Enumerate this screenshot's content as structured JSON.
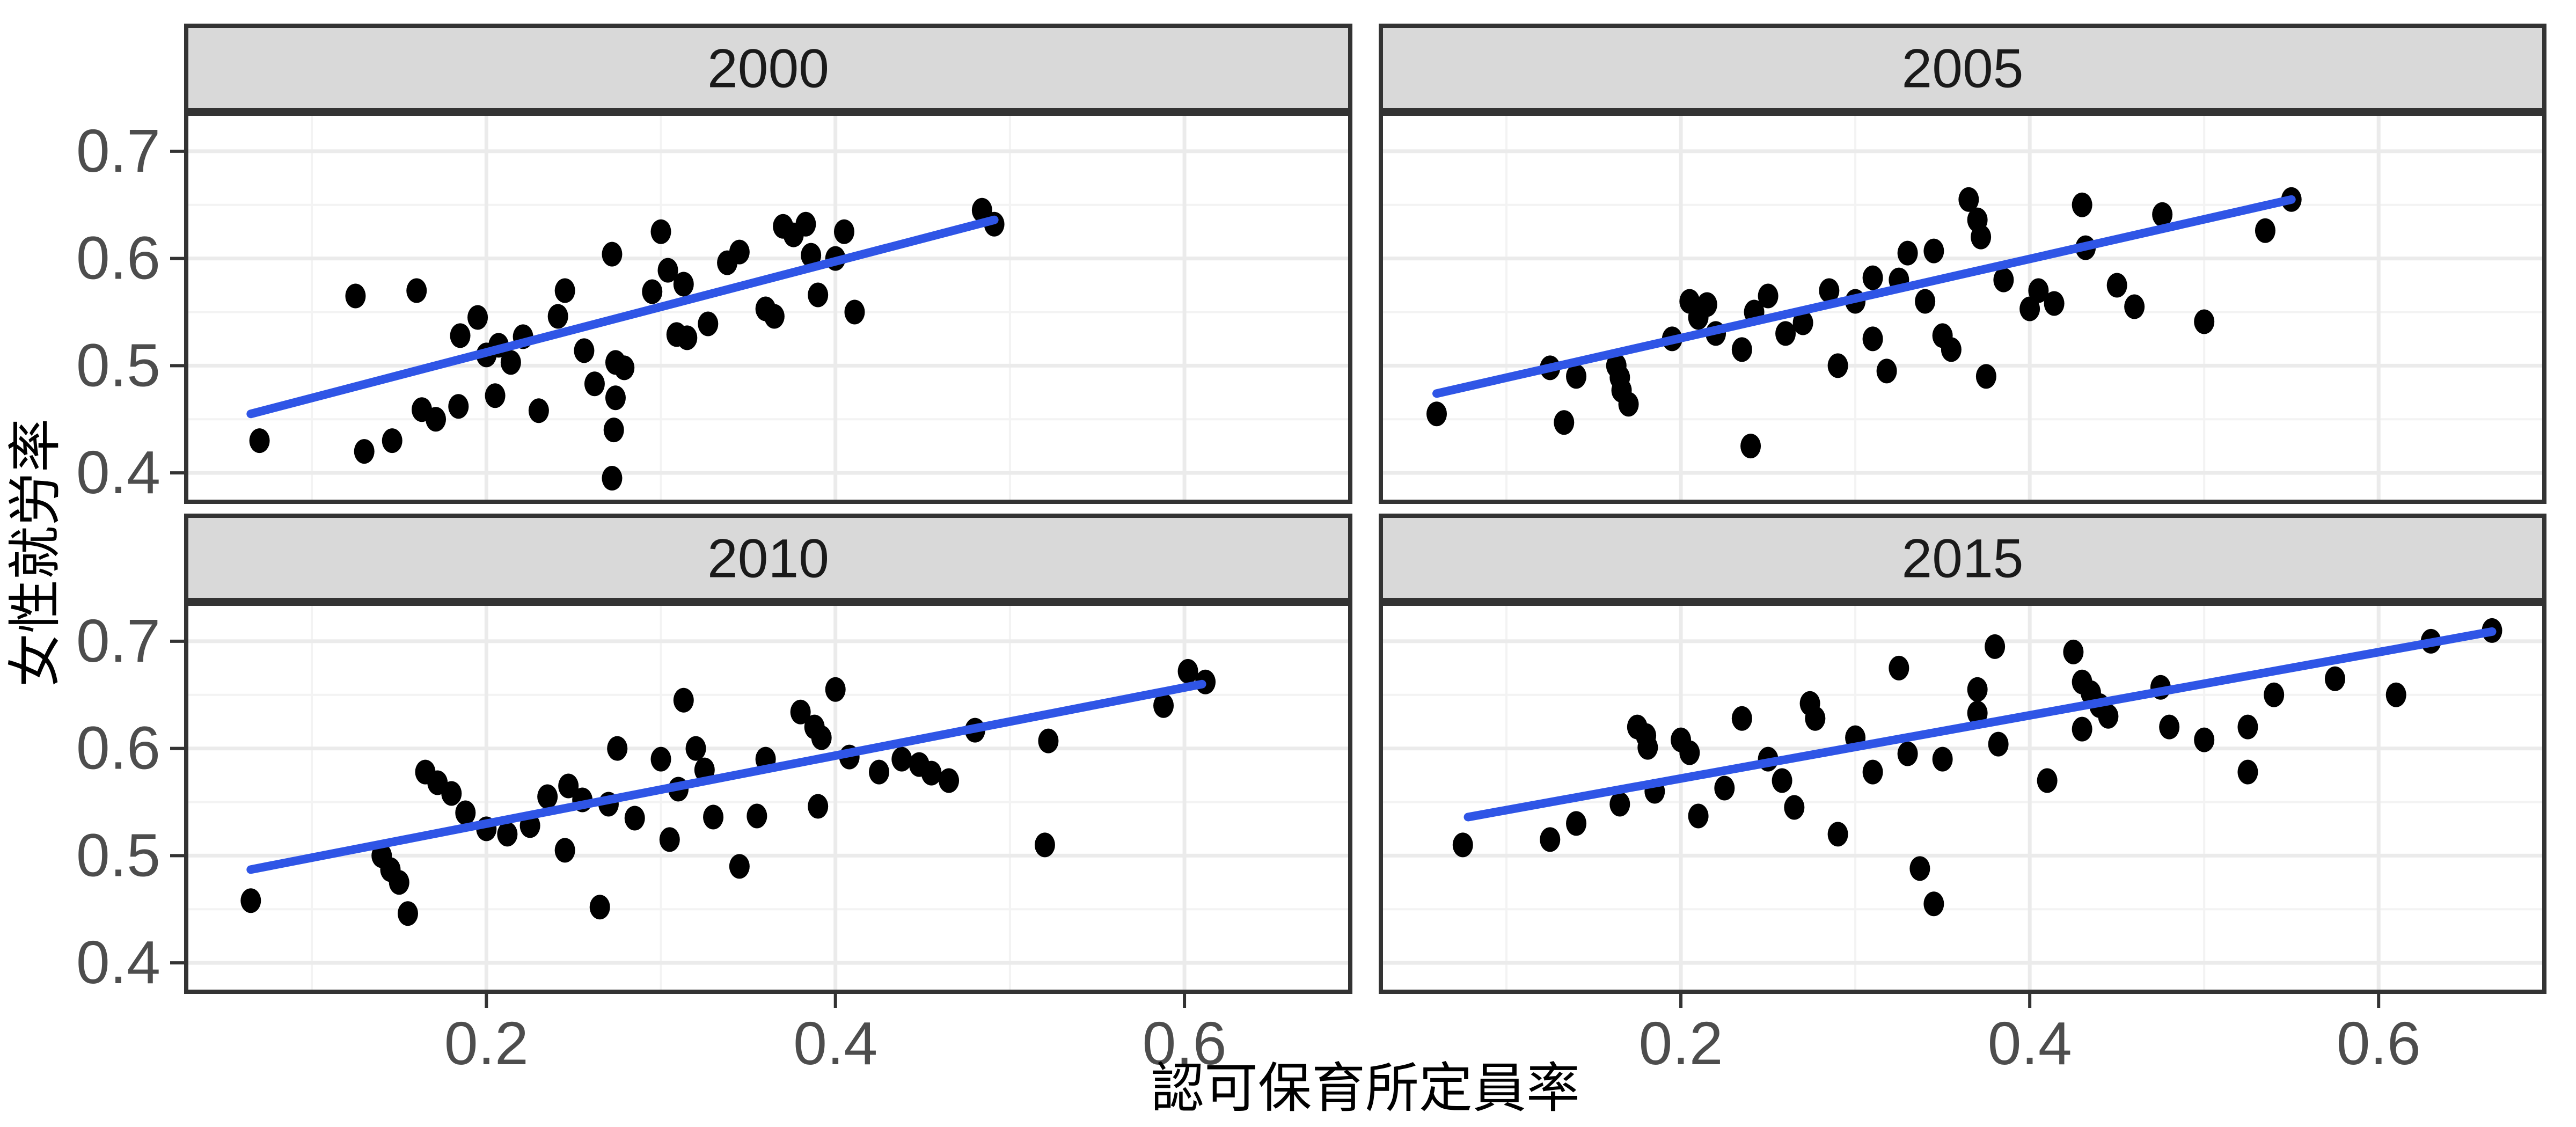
{
  "chart_data": {
    "type": "scatter",
    "title": "",
    "xlabel": "認可保育所定員率",
    "ylabel": "女性就労率",
    "legend": "none",
    "grid": "on",
    "x_axis": {
      "label": "認可保育所定員率",
      "tick_values": [
        0.2,
        0.4,
        0.6
      ],
      "tick_labels": [
        "0.2",
        "0.4",
        "0.6"
      ],
      "minor_tick_values": [
        0.1,
        0.3,
        0.5,
        0.7
      ],
      "domain": [
        0.028,
        0.695
      ]
    },
    "y_axis": {
      "label": "女性就労率",
      "tick_values": [
        0.7,
        0.6,
        0.5,
        0.4
      ],
      "tick_labels": [
        "0.7",
        "0.6",
        "0.5",
        "0.4"
      ],
      "minor_tick_values": [
        0.65,
        0.55,
        0.45
      ],
      "domain": [
        0.373,
        0.735
      ]
    },
    "facets": [
      {
        "label": "2000",
        "trend": {
          "x1": 0.065,
          "y1": 0.455,
          "x2": 0.491,
          "y2": 0.636
        },
        "points": [
          [
            0.07,
            0.43
          ],
          [
            0.125,
            0.565
          ],
          [
            0.13,
            0.42
          ],
          [
            0.146,
            0.43
          ],
          [
            0.16,
            0.57
          ],
          [
            0.163,
            0.459
          ],
          [
            0.171,
            0.45
          ],
          [
            0.184,
            0.462
          ],
          [
            0.185,
            0.528
          ],
          [
            0.195,
            0.545
          ],
          [
            0.2,
            0.51
          ],
          [
            0.205,
            0.472
          ],
          [
            0.207,
            0.519
          ],
          [
            0.214,
            0.503
          ],
          [
            0.221,
            0.527
          ],
          [
            0.23,
            0.458
          ],
          [
            0.241,
            0.546
          ],
          [
            0.245,
            0.57
          ],
          [
            0.256,
            0.514
          ],
          [
            0.262,
            0.483
          ],
          [
            0.272,
            0.604
          ],
          [
            0.273,
            0.44
          ],
          [
            0.272,
            0.395
          ],
          [
            0.274,
            0.47
          ],
          [
            0.274,
            0.503
          ],
          [
            0.279,
            0.498
          ],
          [
            0.295,
            0.569
          ],
          [
            0.3,
            0.625
          ],
          [
            0.304,
            0.589
          ],
          [
            0.309,
            0.529
          ],
          [
            0.313,
            0.576
          ],
          [
            0.315,
            0.526
          ],
          [
            0.327,
            0.539
          ],
          [
            0.338,
            0.596
          ],
          [
            0.345,
            0.606
          ],
          [
            0.36,
            0.553
          ],
          [
            0.365,
            0.546
          ],
          [
            0.37,
            0.63
          ],
          [
            0.376,
            0.622
          ],
          [
            0.383,
            0.632
          ],
          [
            0.386,
            0.603
          ],
          [
            0.39,
            0.566
          ],
          [
            0.4,
            0.6
          ],
          [
            0.405,
            0.625
          ],
          [
            0.411,
            0.55
          ],
          [
            0.484,
            0.645
          ],
          [
            0.491,
            0.632
          ]
        ]
      },
      {
        "label": "2005",
        "trend": {
          "x1": 0.06,
          "y1": 0.474,
          "x2": 0.55,
          "y2": 0.655
        },
        "points": [
          [
            0.06,
            0.455
          ],
          [
            0.125,
            0.498
          ],
          [
            0.133,
            0.447
          ],
          [
            0.14,
            0.49
          ],
          [
            0.163,
            0.5
          ],
          [
            0.165,
            0.489
          ],
          [
            0.166,
            0.477
          ],
          [
            0.17,
            0.464
          ],
          [
            0.195,
            0.525
          ],
          [
            0.205,
            0.56
          ],
          [
            0.21,
            0.545
          ],
          [
            0.215,
            0.557
          ],
          [
            0.22,
            0.53
          ],
          [
            0.235,
            0.515
          ],
          [
            0.24,
            0.425
          ],
          [
            0.242,
            0.55
          ],
          [
            0.25,
            0.565
          ],
          [
            0.26,
            0.53
          ],
          [
            0.27,
            0.54
          ],
          [
            0.285,
            0.57
          ],
          [
            0.29,
            0.5
          ],
          [
            0.3,
            0.56
          ],
          [
            0.31,
            0.525
          ],
          [
            0.31,
            0.582
          ],
          [
            0.318,
            0.495
          ],
          [
            0.325,
            0.58
          ],
          [
            0.33,
            0.605
          ],
          [
            0.34,
            0.56
          ],
          [
            0.345,
            0.607
          ],
          [
            0.35,
            0.528
          ],
          [
            0.355,
            0.515
          ],
          [
            0.365,
            0.655
          ],
          [
            0.37,
            0.636
          ],
          [
            0.372,
            0.62
          ],
          [
            0.375,
            0.49
          ],
          [
            0.385,
            0.58
          ],
          [
            0.4,
            0.553
          ],
          [
            0.405,
            0.57
          ],
          [
            0.414,
            0.558
          ],
          [
            0.43,
            0.65
          ],
          [
            0.432,
            0.61
          ],
          [
            0.45,
            0.575
          ],
          [
            0.46,
            0.555
          ],
          [
            0.476,
            0.641
          ],
          [
            0.5,
            0.541
          ],
          [
            0.535,
            0.626
          ],
          [
            0.55,
            0.655
          ]
        ]
      },
      {
        "label": "2010",
        "trend": {
          "x1": 0.065,
          "y1": 0.487,
          "x2": 0.61,
          "y2": 0.66
        },
        "points": [
          [
            0.065,
            0.458
          ],
          [
            0.14,
            0.5
          ],
          [
            0.145,
            0.487
          ],
          [
            0.15,
            0.475
          ],
          [
            0.155,
            0.446
          ],
          [
            0.165,
            0.578
          ],
          [
            0.172,
            0.568
          ],
          [
            0.18,
            0.558
          ],
          [
            0.188,
            0.54
          ],
          [
            0.2,
            0.525
          ],
          [
            0.212,
            0.52
          ],
          [
            0.225,
            0.528
          ],
          [
            0.235,
            0.555
          ],
          [
            0.245,
            0.505
          ],
          [
            0.247,
            0.565
          ],
          [
            0.255,
            0.552
          ],
          [
            0.265,
            0.452
          ],
          [
            0.27,
            0.548
          ],
          [
            0.275,
            0.6
          ],
          [
            0.285,
            0.535
          ],
          [
            0.3,
            0.59
          ],
          [
            0.305,
            0.515
          ],
          [
            0.31,
            0.562
          ],
          [
            0.313,
            0.645
          ],
          [
            0.32,
            0.6
          ],
          [
            0.325,
            0.58
          ],
          [
            0.33,
            0.536
          ],
          [
            0.345,
            0.49
          ],
          [
            0.355,
            0.537
          ],
          [
            0.36,
            0.59
          ],
          [
            0.38,
            0.634
          ],
          [
            0.388,
            0.62
          ],
          [
            0.39,
            0.546
          ],
          [
            0.392,
            0.61
          ],
          [
            0.4,
            0.655
          ],
          [
            0.408,
            0.592
          ],
          [
            0.425,
            0.578
          ],
          [
            0.438,
            0.59
          ],
          [
            0.448,
            0.585
          ],
          [
            0.455,
            0.577
          ],
          [
            0.465,
            0.57
          ],
          [
            0.48,
            0.617
          ],
          [
            0.52,
            0.51
          ],
          [
            0.522,
            0.607
          ],
          [
            0.588,
            0.64
          ],
          [
            0.602,
            0.672
          ],
          [
            0.612,
            0.662
          ]
        ]
      },
      {
        "label": "2015",
        "trend": {
          "x1": 0.078,
          "y1": 0.536,
          "x2": 0.665,
          "y2": 0.709
        },
        "points": [
          [
            0.075,
            0.51
          ],
          [
            0.125,
            0.515
          ],
          [
            0.14,
            0.53
          ],
          [
            0.165,
            0.548
          ],
          [
            0.175,
            0.62
          ],
          [
            0.18,
            0.612
          ],
          [
            0.181,
            0.601
          ],
          [
            0.185,
            0.56
          ],
          [
            0.2,
            0.608
          ],
          [
            0.205,
            0.596
          ],
          [
            0.21,
            0.537
          ],
          [
            0.225,
            0.563
          ],
          [
            0.235,
            0.628
          ],
          [
            0.25,
            0.59
          ],
          [
            0.258,
            0.57
          ],
          [
            0.265,
            0.545
          ],
          [
            0.274,
            0.642
          ],
          [
            0.277,
            0.628
          ],
          [
            0.29,
            0.52
          ],
          [
            0.3,
            0.61
          ],
          [
            0.31,
            0.578
          ],
          [
            0.325,
            0.675
          ],
          [
            0.33,
            0.595
          ],
          [
            0.337,
            0.488
          ],
          [
            0.345,
            0.455
          ],
          [
            0.35,
            0.59
          ],
          [
            0.37,
            0.655
          ],
          [
            0.37,
            0.633
          ],
          [
            0.38,
            0.695
          ],
          [
            0.382,
            0.604
          ],
          [
            0.41,
            0.57
          ],
          [
            0.425,
            0.69
          ],
          [
            0.43,
            0.662
          ],
          [
            0.435,
            0.652
          ],
          [
            0.44,
            0.64
          ],
          [
            0.445,
            0.63
          ],
          [
            0.43,
            0.618
          ],
          [
            0.475,
            0.657
          ],
          [
            0.48,
            0.62
          ],
          [
            0.5,
            0.608
          ],
          [
            0.525,
            0.62
          ],
          [
            0.525,
            0.578
          ],
          [
            0.54,
            0.65
          ],
          [
            0.575,
            0.665
          ],
          [
            0.61,
            0.65
          ],
          [
            0.63,
            0.7
          ],
          [
            0.665,
            0.71
          ]
        ]
      }
    ],
    "colors": {
      "point": "#000000",
      "trend_line": "#2F55E6",
      "strip_fill": "#D9D9D9",
      "strip_text": "#1A1A1A",
      "panel_border": "#333333",
      "grid_major": "#EBEBEB",
      "grid_minor": "#F3F3F3",
      "tick_mark": "#333333",
      "tick_text": "#4D4D4D",
      "axis_title": "#000000",
      "panel_background": "#FFFFFF",
      "figure_background": "#FFFFFF"
    }
  }
}
